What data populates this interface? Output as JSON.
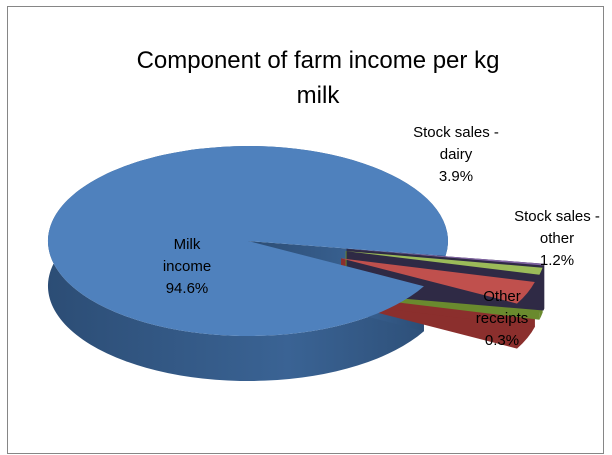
{
  "chart_data": {
    "type": "pie",
    "style": "3d-exploded",
    "title": "Component of farm income per kg milk",
    "title_lines": [
      "Component of farm income per kg",
      "milk"
    ],
    "slices": [
      {
        "name": "Milk income",
        "value": 94.6,
        "label_lines": [
          "Milk",
          "income",
          "94.6%"
        ],
        "color": "#4f81bd"
      },
      {
        "name": "Stock sales - dairy",
        "value": 3.9,
        "label_lines": [
          "Stock sales -",
          "dairy",
          "3.9%"
        ],
        "color": "#c0504d"
      },
      {
        "name": "Stock sales - other",
        "value": 1.2,
        "label_lines": [
          "Stock sales -",
          "other",
          "1.2%"
        ],
        "color": "#9bbb59"
      },
      {
        "name": "Other receipts",
        "value": 0.3,
        "label_lines": [
          "Other",
          "receipts",
          "0.3%"
        ],
        "color": "#8064a2"
      }
    ],
    "legend": "none"
  }
}
